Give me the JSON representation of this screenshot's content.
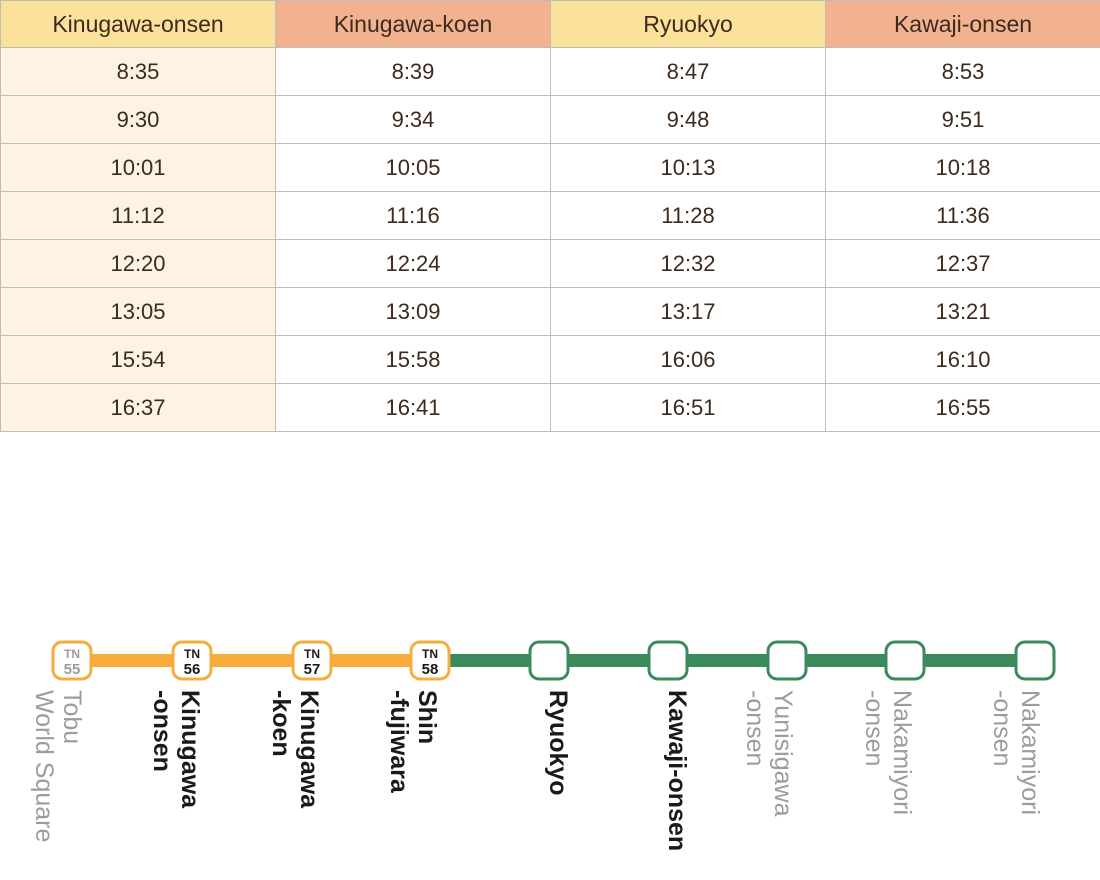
{
  "timetable": {
    "headers": [
      "Kinugawa-onsen",
      "Kinugawa-koen",
      "Ryuokyo",
      "Kawaji-onsen"
    ],
    "rows": [
      [
        "8:35",
        "8:39",
        "8:47",
        "8:53"
      ],
      [
        "9:30",
        "9:34",
        "9:48",
        "9:51"
      ],
      [
        "10:01",
        "10:05",
        "10:13",
        "10:18"
      ],
      [
        "11:12",
        "11:16",
        "11:28",
        "11:36"
      ],
      [
        "12:20",
        "12:24",
        "12:32",
        "12:37"
      ],
      [
        "13:05",
        "13:09",
        "13:17",
        "13:21"
      ],
      [
        "15:54",
        "15:58",
        "16:06",
        "16:10"
      ],
      [
        "16:37",
        "16:41",
        "16:51",
        "16:55"
      ]
    ]
  },
  "route": {
    "colors": {
      "tobu": "#f7ac3b",
      "yagan": "#3a8a5c",
      "muted": "#9c9c9c",
      "dark": "#1a1a1a"
    },
    "stations": [
      {
        "prefix": "TN",
        "number": "55",
        "name_lines": [
          "Tobu",
          "World Square"
        ],
        "muted": true
      },
      {
        "prefix": "TN",
        "number": "56",
        "name_lines": [
          "Kinugawa",
          "-onsen"
        ],
        "muted": false
      },
      {
        "prefix": "TN",
        "number": "57",
        "name_lines": [
          "Kinugawa",
          "-koen"
        ],
        "muted": false
      },
      {
        "prefix": "TN",
        "number": "58",
        "name_lines": [
          "Shin",
          "-fujiwara"
        ],
        "muted": false
      },
      {
        "prefix": "",
        "number": "",
        "name_lines": [
          "Ryuokyo"
        ],
        "muted": false
      },
      {
        "prefix": "",
        "number": "",
        "name_lines": [
          "Kawaji-onsen"
        ],
        "muted": false
      },
      {
        "prefix": "",
        "number": "",
        "name_lines": [
          "Yunisigawa",
          "-onsen"
        ],
        "muted": true
      },
      {
        "prefix": "",
        "number": "",
        "name_lines": [
          "Nakamiyori",
          "-onsen"
        ],
        "muted": true
      },
      {
        "prefix": "",
        "number": "",
        "name_lines": [
          "Nakamiyori",
          "-onsen"
        ],
        "muted": true
      }
    ]
  }
}
